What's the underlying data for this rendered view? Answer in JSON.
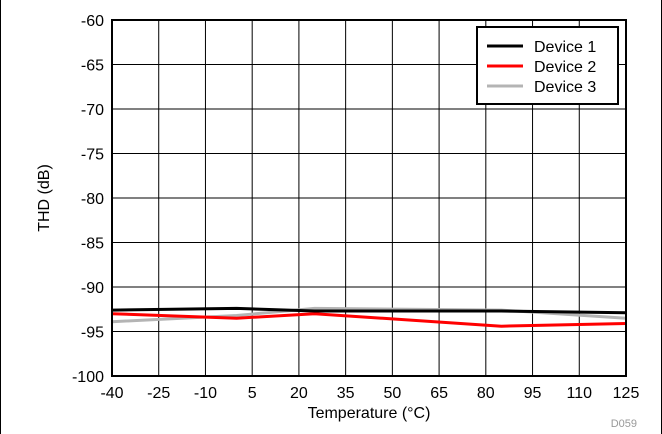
{
  "chart_data": {
    "type": "line",
    "xlabel": "Temperature (°C)",
    "ylabel": "THD (dB)",
    "figure_id": "D059",
    "xlim": [
      -40,
      125
    ],
    "ylim": [
      -100,
      -60
    ],
    "xticks": [
      -40,
      -25,
      -10,
      5,
      20,
      35,
      50,
      65,
      80,
      95,
      110,
      125
    ],
    "yticks": [
      -60,
      -65,
      -70,
      -75,
      -80,
      -85,
      -90,
      -95,
      -100
    ],
    "grid": true,
    "legend_position": "top-right",
    "series": [
      {
        "name": "Device 1",
        "color": "#000000",
        "x": [
          -40,
          0,
          25,
          85,
          125
        ],
        "y": [
          -92.6,
          -92.4,
          -92.7,
          -92.7,
          -92.9
        ]
      },
      {
        "name": "Device 2",
        "color": "#ff0000",
        "x": [
          -40,
          0,
          25,
          85,
          125
        ],
        "y": [
          -93.0,
          -93.5,
          -93.0,
          -94.4,
          -94.1
        ]
      },
      {
        "name": "Device 3",
        "color": "#b4b4b4",
        "x": [
          -40,
          0,
          25,
          85,
          125
        ],
        "y": [
          -93.9,
          -93.2,
          -92.4,
          -92.6,
          -93.5
        ]
      }
    ]
  }
}
